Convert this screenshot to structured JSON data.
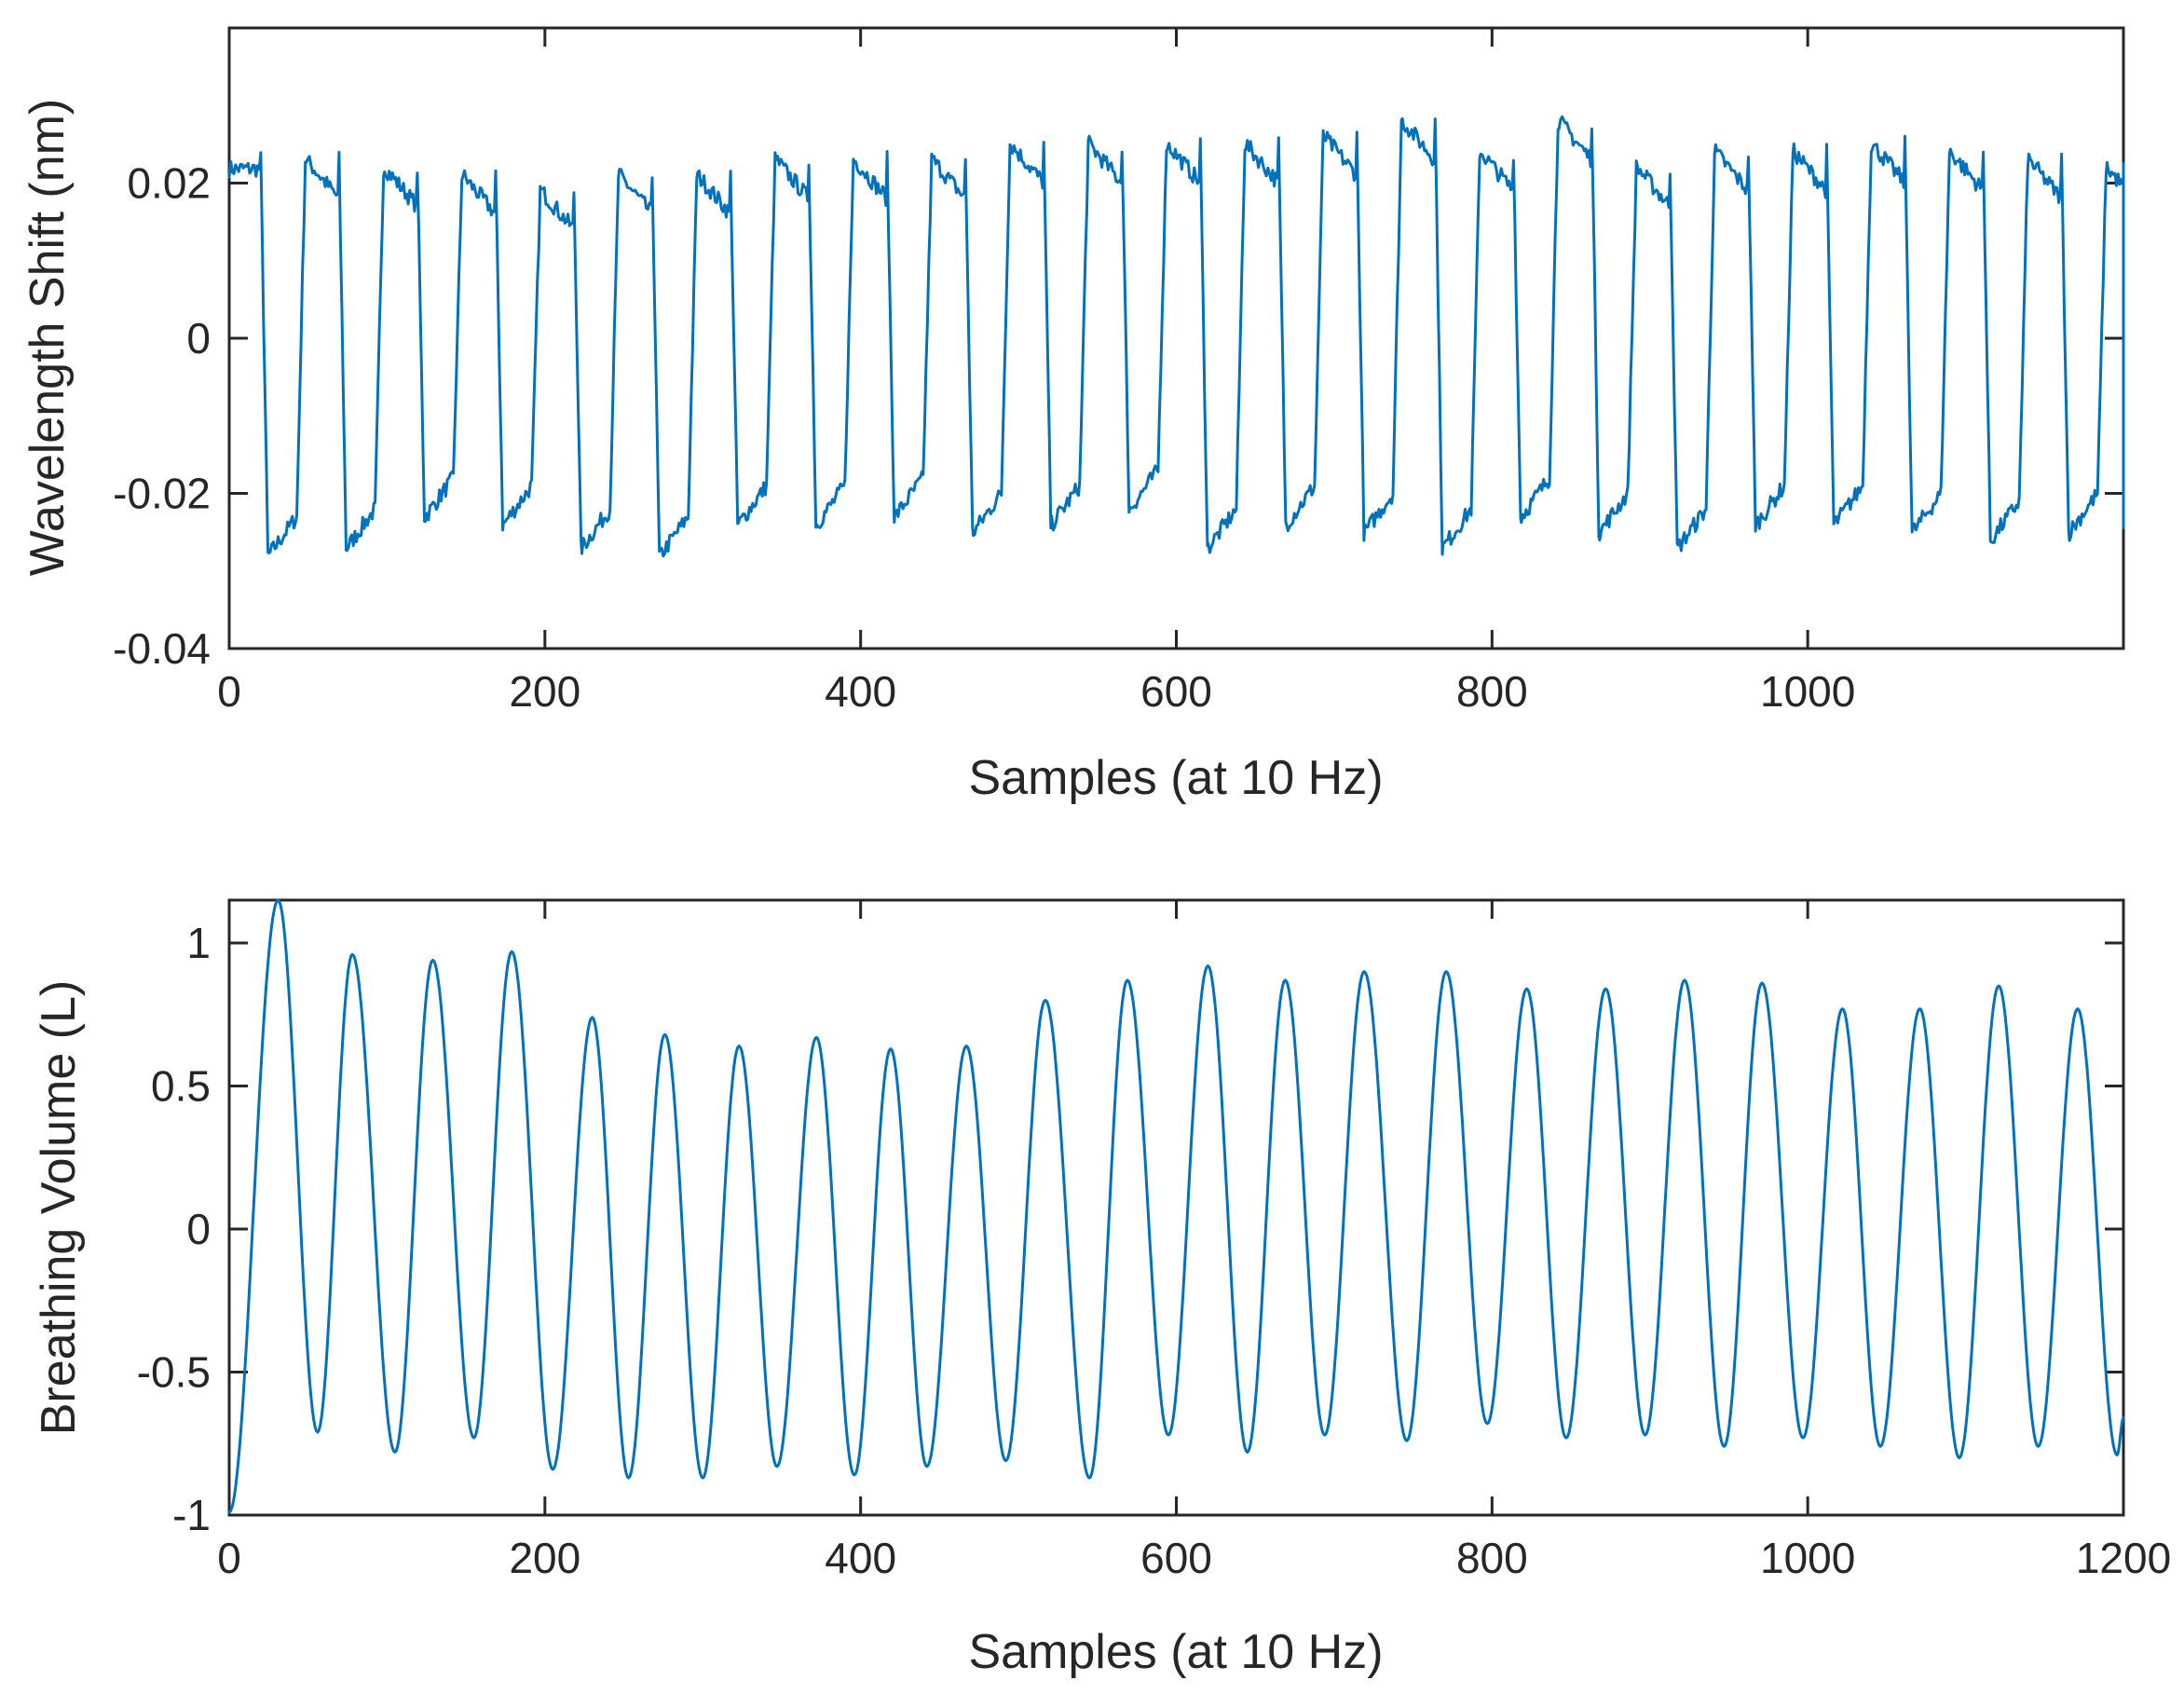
{
  "chart_data": [
    {
      "type": "line",
      "name": "wavelength-shift",
      "title": "",
      "xlabel": "Samples (at 10 Hz)",
      "ylabel": "Wavelength Shift (nm)",
      "xlim": [
        0,
        1200
      ],
      "ylim": [
        -0.04,
        0.04
      ],
      "xticks": [
        0,
        200,
        400,
        600,
        800,
        1000
      ],
      "xtick_labels": [
        "0",
        "200",
        "400",
        "600",
        "800",
        "1000"
      ],
      "yticks": [
        -0.04,
        -0.02,
        0,
        0.02
      ],
      "ytick_labels": [
        "-0.04",
        "-0.02",
        "0",
        "0.02"
      ],
      "grid": false,
      "color": "#0072BD",
      "series": [
        {
          "name": "Wavelength Shift",
          "cycle_samples": 49.6,
          "start_sample": 0,
          "first_drop_sample": 20,
          "cycles": [
            {
              "high": 0.023,
              "low": -0.028
            },
            {
              "high": 0.023,
              "low": -0.027
            },
            {
              "high": 0.022,
              "low": -0.023
            },
            {
              "high": 0.021,
              "low": -0.024
            },
            {
              "high": 0.019,
              "low": -0.027
            },
            {
              "high": 0.021,
              "low": -0.028
            },
            {
              "high": 0.021,
              "low": -0.024
            },
            {
              "high": 0.023,
              "low": -0.024
            },
            {
              "high": 0.023,
              "low": -0.023
            },
            {
              "high": 0.023,
              "low": -0.025
            },
            {
              "high": 0.025,
              "low": -0.024
            },
            {
              "high": 0.025,
              "low": -0.022
            },
            {
              "high": 0.025,
              "low": -0.027
            },
            {
              "high": 0.025,
              "low": -0.024
            },
            {
              "high": 0.026,
              "low": -0.025
            },
            {
              "high": 0.028,
              "low": -0.027
            },
            {
              "high": 0.024,
              "low": -0.023
            },
            {
              "high": 0.028,
              "low": -0.025
            },
            {
              "high": 0.022,
              "low": -0.027
            },
            {
              "high": 0.024,
              "low": -0.024
            },
            {
              "high": 0.024,
              "low": -0.024
            },
            {
              "high": 0.025,
              "low": -0.025
            },
            {
              "high": 0.024,
              "low": -0.026
            },
            {
              "high": 0.023,
              "low": -0.025
            },
            {
              "high": 0.022,
              "low": -0.024
            }
          ]
        }
      ]
    },
    {
      "type": "line",
      "name": "breathing-volume",
      "title": "",
      "xlabel": "Samples (at 10 Hz)",
      "ylabel": "Breathing Volume (L)",
      "xlim": [
        0,
        1200
      ],
      "ylim": [
        -1,
        1.15
      ],
      "xticks": [
        0,
        200,
        400,
        600,
        800,
        1000,
        1200
      ],
      "xtick_labels": [
        "0",
        "200",
        "400",
        "600",
        "800",
        "1000",
        "1200"
      ],
      "yticks": [
        -1,
        -0.5,
        0,
        0.5,
        1
      ],
      "ytick_labels": [
        "-1",
        "-0.5",
        "0",
        "0.5",
        "1"
      ],
      "grid": false,
      "color": "#0072BD",
      "series": [
        {
          "name": "Breathing Volume",
          "start": {
            "x": 0,
            "y": -0.99
          },
          "peaks": [
            {
              "x": 31,
              "y": 1.15
            },
            {
              "x": 78,
              "y": 0.96
            },
            {
              "x": 129,
              "y": 0.94
            },
            {
              "x": 179,
              "y": 0.97
            },
            {
              "x": 230,
              "y": 0.74
            },
            {
              "x": 276,
              "y": 0.68
            },
            {
              "x": 323,
              "y": 0.64
            },
            {
              "x": 372,
              "y": 0.67
            },
            {
              "x": 419,
              "y": 0.63
            },
            {
              "x": 467,
              "y": 0.64
            },
            {
              "x": 517,
              "y": 0.8
            },
            {
              "x": 569,
              "y": 0.87
            },
            {
              "x": 620,
              "y": 0.92
            },
            {
              "x": 669,
              "y": 0.87
            },
            {
              "x": 719,
              "y": 0.9
            },
            {
              "x": 771,
              "y": 0.9
            },
            {
              "x": 822,
              "y": 0.84
            },
            {
              "x": 872,
              "y": 0.84
            },
            {
              "x": 922,
              "y": 0.87
            },
            {
              "x": 971,
              "y": 0.86
            },
            {
              "x": 1022,
              "y": 0.77
            },
            {
              "x": 1071,
              "y": 0.77
            },
            {
              "x": 1121,
              "y": 0.85
            },
            {
              "x": 1171,
              "y": 0.77
            }
          ],
          "troughs": [
            {
              "x": 56,
              "y": -0.71
            },
            {
              "x": 105,
              "y": -0.78
            },
            {
              "x": 155,
              "y": -0.73
            },
            {
              "x": 205,
              "y": -0.84
            },
            {
              "x": 253,
              "y": -0.87
            },
            {
              "x": 300,
              "y": -0.87
            },
            {
              "x": 347,
              "y": -0.83
            },
            {
              "x": 396,
              "y": -0.86
            },
            {
              "x": 442,
              "y": -0.83
            },
            {
              "x": 492,
              "y": -0.81
            },
            {
              "x": 545,
              "y": -0.87
            },
            {
              "x": 595,
              "y": -0.72
            },
            {
              "x": 645,
              "y": -0.78
            },
            {
              "x": 694,
              "y": -0.72
            },
            {
              "x": 746,
              "y": -0.74
            },
            {
              "x": 797,
              "y": -0.68
            },
            {
              "x": 847,
              "y": -0.73
            },
            {
              "x": 897,
              "y": -0.72
            },
            {
              "x": 947,
              "y": -0.76
            },
            {
              "x": 997,
              "y": -0.73
            },
            {
              "x": 1046,
              "y": -0.76
            },
            {
              "x": 1096,
              "y": -0.8
            },
            {
              "x": 1146,
              "y": -0.76
            },
            {
              "x": 1196,
              "y": -0.79
            }
          ],
          "end": {
            "x": 1200,
            "y": -0.66
          }
        }
      ]
    }
  ]
}
